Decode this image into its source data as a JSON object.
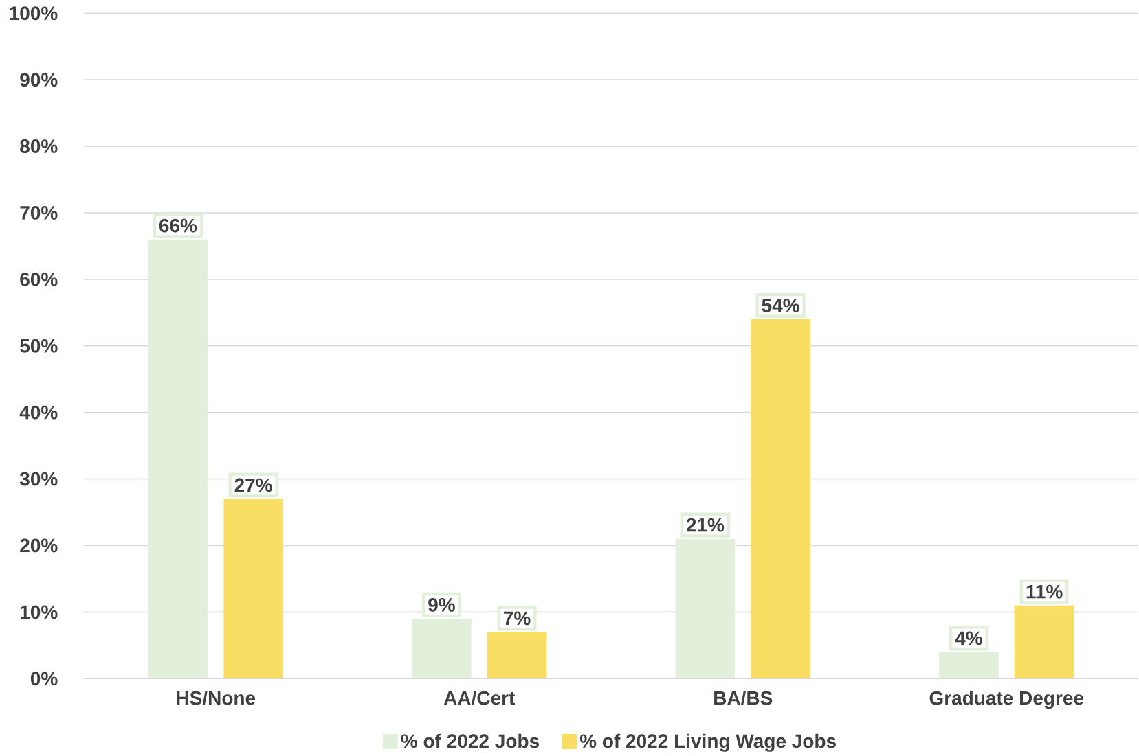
{
  "chart_data": {
    "type": "bar",
    "categories": [
      "HS/None",
      "AA/Cert",
      "BA/BS",
      "Graduate Degree"
    ],
    "series": [
      {
        "name": "% of 2022 Jobs",
        "color": "#e2efda",
        "values": [
          66,
          9,
          21,
          4
        ],
        "value_labels": [
          "66%",
          "9%",
          "21%",
          "4%"
        ]
      },
      {
        "name": "% of 2022 Living Wage Jobs",
        "color": "#f8df63",
        "values": [
          27,
          7,
          54,
          11
        ],
        "value_labels": [
          "27%",
          "7%",
          "54%",
          "11%"
        ]
      }
    ],
    "ylim": [
      0,
      100
    ],
    "yticks": [
      {
        "value": 0,
        "label": "0%"
      },
      {
        "value": 10,
        "label": "10%"
      },
      {
        "value": 20,
        "label": "20%"
      },
      {
        "value": 30,
        "label": "30%"
      },
      {
        "value": 40,
        "label": "40%"
      },
      {
        "value": 50,
        "label": "50%"
      },
      {
        "value": 60,
        "label": "60%"
      },
      {
        "value": 70,
        "label": "70%"
      },
      {
        "value": 80,
        "label": "80%"
      },
      {
        "value": 90,
        "label": "90%"
      },
      {
        "value": 100,
        "label": "100%"
      }
    ],
    "grid": "y",
    "legend": "bottom"
  }
}
